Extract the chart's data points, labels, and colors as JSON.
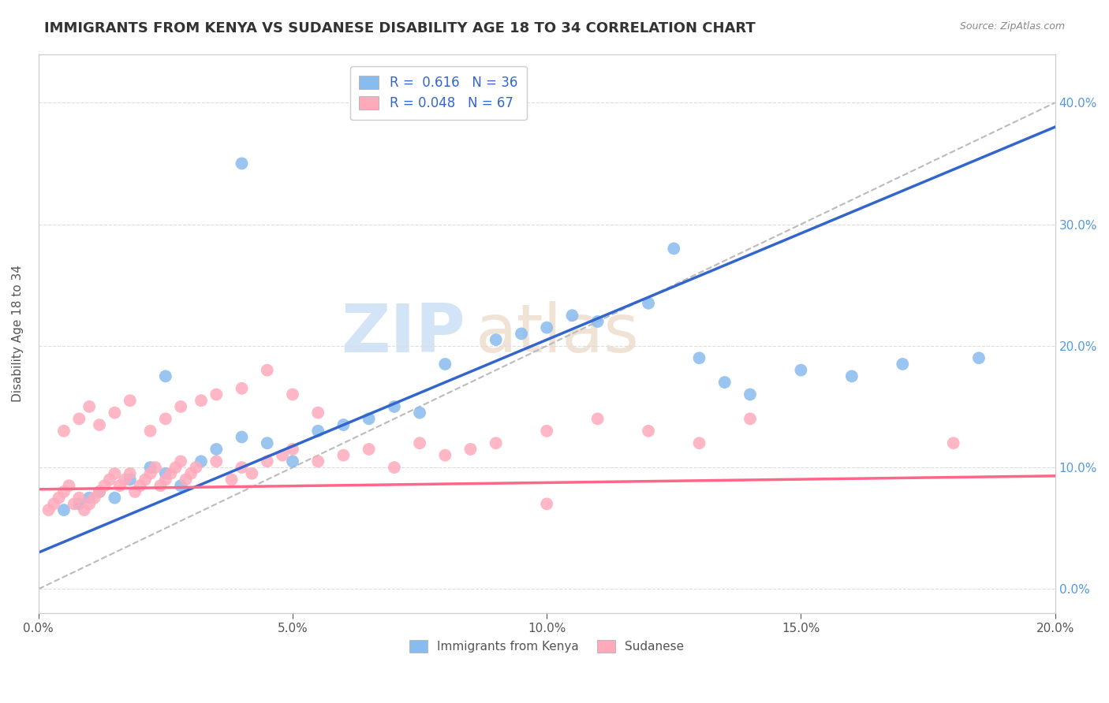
{
  "title": "IMMIGRANTS FROM KENYA VS SUDANESE DISABILITY AGE 18 TO 34 CORRELATION CHART",
  "source": "Source: ZipAtlas.com",
  "ylabel": "Disability Age 18 to 34",
  "xlim": [
    0.0,
    0.2
  ],
  "ylim": [
    -0.02,
    0.44
  ],
  "xticks": [
    0.0,
    0.05,
    0.1,
    0.15,
    0.2
  ],
  "yticks_right": [
    0.0,
    0.1,
    0.2,
    0.3,
    0.4
  ],
  "ytick_labels_right": [
    "0.0%",
    "10.0%",
    "20.0%",
    "30.0%",
    "40.0%"
  ],
  "xtick_labels": [
    "0.0%",
    "5.0%",
    "10.0%",
    "15.0%",
    "20.0%"
  ],
  "legend_r1": "R =  0.616",
  "legend_n1": "N = 36",
  "legend_r2": "R = 0.048",
  "legend_n2": "N = 67",
  "color_kenya": "#88BBEE",
  "color_sudanese": "#FFAABB",
  "line_color_kenya": "#3366CC",
  "line_color_sudanese": "#FF6688",
  "ref_line_color": "#BBBBBB",
  "background_color": "#FFFFFF",
  "grid_color": "#DDDDDD",
  "kenya_scatter_x": [
    0.005,
    0.008,
    0.01,
    0.012,
    0.015,
    0.018,
    0.022,
    0.025,
    0.028,
    0.032,
    0.035,
    0.04,
    0.045,
    0.05,
    0.055,
    0.06,
    0.065,
    0.07,
    0.075,
    0.08,
    0.09,
    0.095,
    0.1,
    0.105,
    0.11,
    0.12,
    0.125,
    0.13,
    0.135,
    0.14,
    0.15,
    0.16,
    0.17,
    0.185,
    0.025,
    0.04
  ],
  "kenya_scatter_y": [
    0.065,
    0.07,
    0.075,
    0.08,
    0.075,
    0.09,
    0.1,
    0.095,
    0.085,
    0.105,
    0.115,
    0.125,
    0.12,
    0.105,
    0.13,
    0.135,
    0.14,
    0.15,
    0.145,
    0.185,
    0.205,
    0.21,
    0.215,
    0.225,
    0.22,
    0.235,
    0.28,
    0.19,
    0.17,
    0.16,
    0.18,
    0.175,
    0.185,
    0.19,
    0.175,
    0.35
  ],
  "sudanese_scatter_x": [
    0.002,
    0.003,
    0.004,
    0.005,
    0.006,
    0.007,
    0.008,
    0.009,
    0.01,
    0.011,
    0.012,
    0.013,
    0.014,
    0.015,
    0.016,
    0.017,
    0.018,
    0.019,
    0.02,
    0.021,
    0.022,
    0.023,
    0.024,
    0.025,
    0.026,
    0.027,
    0.028,
    0.029,
    0.03,
    0.031,
    0.035,
    0.038,
    0.04,
    0.042,
    0.045,
    0.048,
    0.05,
    0.055,
    0.06,
    0.065,
    0.07,
    0.075,
    0.08,
    0.085,
    0.09,
    0.1,
    0.11,
    0.12,
    0.13,
    0.14,
    0.005,
    0.008,
    0.01,
    0.012,
    0.015,
    0.018,
    0.022,
    0.025,
    0.028,
    0.032,
    0.035,
    0.04,
    0.045,
    0.05,
    0.055,
    0.18,
    0.1
  ],
  "sudanese_scatter_y": [
    0.065,
    0.07,
    0.075,
    0.08,
    0.085,
    0.07,
    0.075,
    0.065,
    0.07,
    0.075,
    0.08,
    0.085,
    0.09,
    0.095,
    0.085,
    0.09,
    0.095,
    0.08,
    0.085,
    0.09,
    0.095,
    0.1,
    0.085,
    0.09,
    0.095,
    0.1,
    0.105,
    0.09,
    0.095,
    0.1,
    0.105,
    0.09,
    0.1,
    0.095,
    0.105,
    0.11,
    0.115,
    0.105,
    0.11,
    0.115,
    0.1,
    0.12,
    0.11,
    0.115,
    0.12,
    0.13,
    0.14,
    0.13,
    0.12,
    0.14,
    0.13,
    0.14,
    0.15,
    0.135,
    0.145,
    0.155,
    0.13,
    0.14,
    0.15,
    0.155,
    0.16,
    0.165,
    0.18,
    0.16,
    0.145,
    0.12,
    0.07
  ],
  "kenya_line_x": [
    0.0,
    0.2
  ],
  "kenya_line_y": [
    0.03,
    0.38
  ],
  "sudanese_line_x": [
    0.0,
    0.2
  ],
  "sudanese_line_y": [
    0.082,
    0.093
  ],
  "ref_line_x": [
    0.0,
    0.2
  ],
  "ref_line_y": [
    0.0,
    0.4
  ],
  "watermark_zip": "ZIP",
  "watermark_atlas": "atlas",
  "title_fontsize": 13,
  "label_fontsize": 11,
  "tick_fontsize": 11,
  "legend_fontsize": 12
}
